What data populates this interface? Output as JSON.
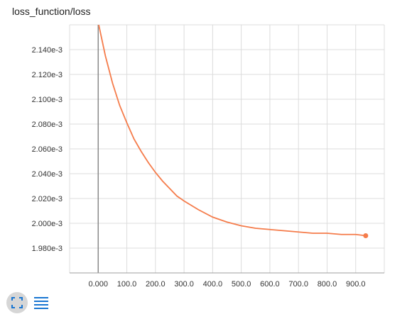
{
  "chart_data": {
    "type": "line",
    "title": "loss_function/loss",
    "xlabel": "",
    "ylabel": "",
    "x_ticks": [
      "0.000",
      "100.0",
      "200.0",
      "300.0",
      "400.0",
      "500.0",
      "600.0",
      "700.0",
      "800.0",
      "900.0"
    ],
    "y_ticks": [
      "1.980e-3",
      "2.000e-3",
      "2.020e-3",
      "2.040e-3",
      "2.060e-3",
      "2.080e-3",
      "2.100e-3",
      "2.120e-3",
      "2.140e-3"
    ],
    "xlim": [
      -100,
      1000
    ],
    "ylim": [
      0.00196,
      0.00216
    ],
    "grid": true,
    "series": [
      {
        "color": "#f57c4b",
        "x": [
          0,
          25,
          50,
          75,
          100,
          125,
          150,
          175,
          200,
          225,
          250,
          275,
          300,
          350,
          400,
          450,
          500,
          550,
          600,
          650,
          700,
          750,
          800,
          850,
          900,
          935
        ],
        "y": [
          0.002162,
          0.002135,
          0.002113,
          0.002095,
          0.002081,
          0.002068,
          0.002058,
          0.002049,
          0.002041,
          0.002034,
          0.002028,
          0.002022,
          0.002018,
          0.002011,
          0.002005,
          0.002001,
          0.001998,
          0.001996,
          0.001995,
          0.001994,
          0.001993,
          0.001992,
          0.001992,
          0.001991,
          0.001991,
          0.00199
        ]
      }
    ]
  },
  "toolbar": {
    "expand_icon": "fullscreen-icon",
    "list_icon": "list-icon"
  }
}
